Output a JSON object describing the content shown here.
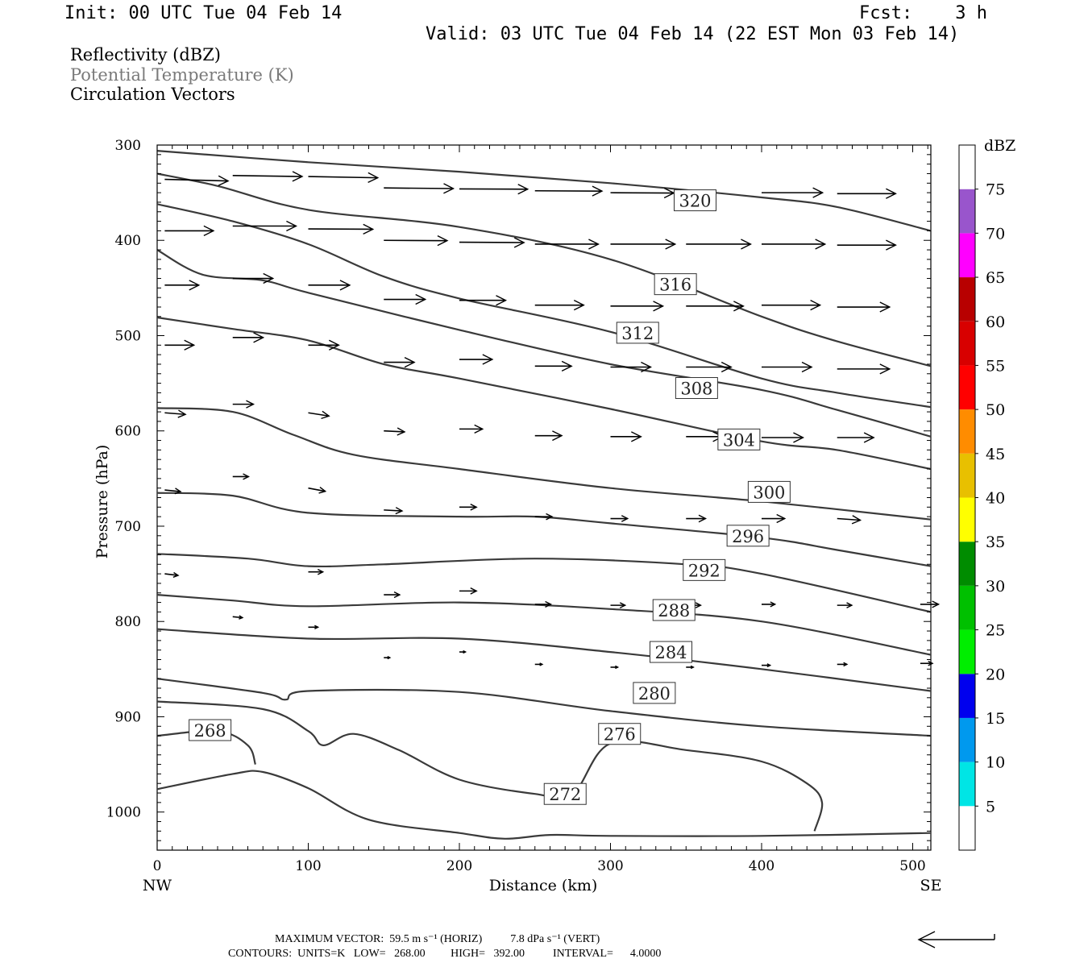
{
  "header": {
    "init": "Init: 00 UTC Tue 04 Feb 14",
    "fcst": "Fcst:    3 h",
    "valid": "Valid: 03 UTC Tue 04 Feb 14 (22 EST Mon 03 Feb 14)",
    "field1": "Reflectivity (dBZ)",
    "field2": "Potential Temperature (K)",
    "field3": "Circulation Vectors"
  },
  "footer": {
    "line1": "MAXIMUM VECTOR:  59.5 m s⁻¹ (HORIZ)          7.8 dPa s⁻¹ (VERT)",
    "line2": "CONTOURS:  UNITS=K   LOW=   268.00         HIGH=   392.00          INTERVAL=      4.0000"
  },
  "colors": {
    "contour": "#3a3a3a",
    "frame": "#000000",
    "theta_legend": "#7a7a7a"
  },
  "chart_data": {
    "type": "cross-section",
    "title": "",
    "xlabel": "Distance (km)",
    "ylabel": "Pressure (hPa)",
    "xlim": [
      0,
      512
    ],
    "ylim": [
      1040,
      300
    ],
    "x_ticks": [
      0,
      100,
      200,
      300,
      400,
      500
    ],
    "y_ticks": [
      300,
      400,
      500,
      600,
      700,
      800,
      900,
      1000
    ],
    "x_end_labels": {
      "left": "NW",
      "right": "SE"
    },
    "colorbar": {
      "title": "dBZ",
      "levels": [
        5,
        10,
        15,
        20,
        25,
        30,
        35,
        40,
        45,
        50,
        55,
        60,
        65,
        70,
        75
      ],
      "colors": [
        "#ffffff",
        "#00e5e5",
        "#0099ee",
        "#0000ee",
        "#00ee00",
        "#00c000",
        "#008c00",
        "#ffff00",
        "#e8c000",
        "#ff8c00",
        "#ff0000",
        "#d80000",
        "#b80000",
        "#ff00ff",
        "#9955cc",
        "#ffffff"
      ]
    },
    "theta_contours": [
      {
        "level": 320,
        "points": [
          [
            0,
            306
          ],
          [
            100,
            318
          ],
          [
            200,
            328
          ],
          [
            300,
            340
          ],
          [
            400,
            355
          ],
          [
            450,
            365
          ],
          [
            512,
            390
          ]
        ],
        "label": "320",
        "label_at": [
          356,
          358
        ]
      },
      {
        "level": 316,
        "points": [
          [
            0,
            330
          ],
          [
            40,
            343
          ],
          [
            100,
            368
          ],
          [
            200,
            386
          ],
          [
            300,
            420
          ],
          [
            400,
            480
          ],
          [
            450,
            506
          ],
          [
            512,
            532
          ]
        ],
        "label": "316",
        "label_at": [
          343,
          446
        ]
      },
      {
        "level": 312,
        "points": [
          [
            0,
            362
          ],
          [
            50,
            380
          ],
          [
            100,
            404
          ],
          [
            150,
            438
          ],
          [
            200,
            461
          ],
          [
            300,
            496
          ],
          [
            400,
            545
          ],
          [
            450,
            560
          ],
          [
            512,
            575
          ]
        ],
        "label": "312",
        "label_at": [
          318,
          497
        ]
      },
      {
        "level": 308,
        "points": [
          [
            0,
            410
          ],
          [
            30,
            436
          ],
          [
            70,
            442
          ],
          [
            100,
            455
          ],
          [
            200,
            494
          ],
          [
            300,
            530
          ],
          [
            400,
            557
          ],
          [
            450,
            578
          ],
          [
            512,
            606
          ]
        ],
        "label": "308",
        "label_at": [
          357,
          555
        ]
      },
      {
        "level": 304,
        "points": [
          [
            0,
            481
          ],
          [
            50,
            493
          ],
          [
            100,
            505
          ],
          [
            150,
            530
          ],
          [
            200,
            545
          ],
          [
            300,
            577
          ],
          [
            400,
            611
          ],
          [
            450,
            620
          ],
          [
            512,
            640
          ]
        ],
        "label": "304",
        "label_at": [
          385,
          609
        ]
      },
      {
        "level": 300,
        "points": [
          [
            0,
            576
          ],
          [
            50,
            580
          ],
          [
            90,
            604
          ],
          [
            130,
            625
          ],
          [
            200,
            640
          ],
          [
            300,
            660
          ],
          [
            400,
            674
          ],
          [
            512,
            693
          ]
        ],
        "label": "300",
        "label_at": [
          405,
          664
        ]
      },
      {
        "level": 296,
        "points": [
          [
            0,
            665
          ],
          [
            50,
            668
          ],
          [
            100,
            686
          ],
          [
            200,
            690
          ],
          [
            250,
            690
          ],
          [
            300,
            697
          ],
          [
            400,
            712
          ],
          [
            450,
            725
          ],
          [
            512,
            742
          ]
        ],
        "label": "296",
        "label_at": [
          391,
          710
        ]
      },
      {
        "level": 292,
        "points": [
          [
            0,
            729
          ],
          [
            60,
            734
          ],
          [
            100,
            742
          ],
          [
            150,
            740
          ],
          [
            250,
            734
          ],
          [
            350,
            740
          ],
          [
            400,
            750
          ],
          [
            512,
            790
          ]
        ],
        "label": "292",
        "label_at": [
          362,
          746
        ]
      },
      {
        "level": 288,
        "points": [
          [
            0,
            772
          ],
          [
            50,
            778
          ],
          [
            100,
            784
          ],
          [
            200,
            780
          ],
          [
            300,
            787
          ],
          [
            400,
            800
          ],
          [
            512,
            835
          ]
        ],
        "label": "288",
        "label_at": [
          342,
          788
        ]
      },
      {
        "level": 284,
        "points": [
          [
            0,
            808
          ],
          [
            100,
            818
          ],
          [
            200,
            818
          ],
          [
            300,
            832
          ],
          [
            400,
            850
          ],
          [
            512,
            873
          ]
        ],
        "label": "284",
        "label_at": [
          340,
          832
        ]
      },
      {
        "level": 280,
        "points": [
          [
            0,
            860
          ],
          [
            70,
            875
          ],
          [
            85,
            882
          ],
          [
            100,
            873
          ],
          [
            200,
            874
          ],
          [
            300,
            894
          ],
          [
            400,
            910
          ],
          [
            512,
            920
          ]
        ],
        "label": "280",
        "label_at": [
          329,
          875
        ]
      },
      {
        "level": 276,
        "points": [
          [
            0,
            884
          ],
          [
            70,
            892
          ],
          [
            100,
            915
          ],
          [
            110,
            930
          ],
          [
            130,
            918
          ],
          [
            160,
            935
          ],
          [
            200,
            966
          ],
          [
            250,
            981
          ],
          [
            275,
            981
          ],
          [
            300,
            928
          ],
          [
            350,
            935
          ],
          [
            400,
            947
          ],
          [
            430,
            970
          ],
          [
            440,
            990
          ],
          [
            435,
            1020
          ]
        ],
        "label": "276",
        "label_at": [
          306,
          918
        ]
      },
      {
        "level": 272,
        "points": [
          [
            0,
            976
          ],
          [
            50,
            960
          ],
          [
            70,
            958
          ],
          [
            100,
            975
          ],
          [
            140,
            1008
          ],
          [
            200,
            1022
          ],
          [
            230,
            1028
          ],
          [
            260,
            1024
          ],
          [
            300,
            1025
          ],
          [
            400,
            1025
          ],
          [
            512,
            1022
          ]
        ],
        "label": "272",
        "label_at": [
          270,
          981
        ]
      },
      {
        "level": 268,
        "points": [
          [
            0,
            920
          ],
          [
            40,
            915
          ],
          [
            60,
            930
          ],
          [
            65,
            950
          ]
        ],
        "label": "268",
        "label_at": [
          35,
          914
        ]
      }
    ],
    "vectors": {
      "note": "u in m/s (horizontal), w in dPa/s (vertical)",
      "items": [
        {
          "x": 5,
          "p": 336,
          "u": 52,
          "w": 0.5
        },
        {
          "x": 50,
          "p": 332,
          "u": 57,
          "w": 0.3
        },
        {
          "x": 100,
          "p": 333,
          "u": 57,
          "w": 0.4
        },
        {
          "x": 150,
          "p": 345,
          "u": 57,
          "w": 0.2
        },
        {
          "x": 200,
          "p": 346,
          "u": 56,
          "w": 0.1
        },
        {
          "x": 250,
          "p": 348,
          "u": 55,
          "w": 0.1
        },
        {
          "x": 300,
          "p": 350,
          "u": 52,
          "w": 0.1
        },
        {
          "x": 400,
          "p": 350,
          "u": 50,
          "w": 0.0
        },
        {
          "x": 450,
          "p": 351,
          "u": 48,
          "w": 0.0
        },
        {
          "x": 5,
          "p": 390,
          "u": 40,
          "w": 0.0
        },
        {
          "x": 50,
          "p": 385,
          "u": 52,
          "w": 0.0
        },
        {
          "x": 100,
          "p": 388,
          "u": 53,
          "w": 0.1
        },
        {
          "x": 150,
          "p": 400,
          "u": 52,
          "w": 0.1
        },
        {
          "x": 200,
          "p": 402,
          "u": 53,
          "w": 0.1
        },
        {
          "x": 250,
          "p": 404,
          "u": 52,
          "w": 0.0
        },
        {
          "x": 300,
          "p": 404,
          "u": 53,
          "w": 0.0
        },
        {
          "x": 350,
          "p": 404,
          "u": 53,
          "w": 0.0
        },
        {
          "x": 400,
          "p": 404,
          "u": 52,
          "w": 0.0
        },
        {
          "x": 450,
          "p": 405,
          "u": 48,
          "w": 0.0
        },
        {
          "x": 5,
          "p": 447,
          "u": 28,
          "w": 0.0
        },
        {
          "x": 50,
          "p": 440,
          "u": 33,
          "w": 0.0
        },
        {
          "x": 100,
          "p": 447,
          "u": 34,
          "w": 0.0
        },
        {
          "x": 150,
          "p": 462,
          "u": 34,
          "w": 0.0
        },
        {
          "x": 200,
          "p": 463,
          "u": 38,
          "w": 0.0
        },
        {
          "x": 250,
          "p": 468,
          "u": 40,
          "w": 0.0
        },
        {
          "x": 300,
          "p": 469,
          "u": 43,
          "w": 0.0
        },
        {
          "x": 350,
          "p": 469,
          "u": 47,
          "w": 0.0
        },
        {
          "x": 400,
          "p": 468,
          "u": 48,
          "w": 0.0
        },
        {
          "x": 450,
          "p": 470,
          "u": 43,
          "w": 0.0
        },
        {
          "x": 5,
          "p": 510,
          "u": 24,
          "w": 0.0
        },
        {
          "x": 50,
          "p": 502,
          "u": 25,
          "w": 0.0
        },
        {
          "x": 100,
          "p": 510,
          "u": 25,
          "w": 0.0
        },
        {
          "x": 150,
          "p": 528,
          "u": 25,
          "w": 0.0
        },
        {
          "x": 200,
          "p": 525,
          "u": 27,
          "w": 0.0
        },
        {
          "x": 250,
          "p": 532,
          "u": 30,
          "w": 0.0
        },
        {
          "x": 300,
          "p": 533,
          "u": 33,
          "w": 0.0
        },
        {
          "x": 350,
          "p": 533,
          "u": 37,
          "w": 0.0
        },
        {
          "x": 400,
          "p": 533,
          "u": 41,
          "w": 0.0
        },
        {
          "x": 450,
          "p": 535,
          "u": 43,
          "w": 0.0
        },
        {
          "x": 5,
          "p": 581,
          "u": 17,
          "w": 0.5
        },
        {
          "x": 50,
          "p": 572,
          "u": 17,
          "w": 0.0
        },
        {
          "x": 100,
          "p": 581,
          "u": 17,
          "w": 1.0
        },
        {
          "x": 150,
          "p": 600,
          "u": 17,
          "w": 0.3
        },
        {
          "x": 200,
          "p": 598,
          "u": 19,
          "w": 0.0
        },
        {
          "x": 250,
          "p": 605,
          "u": 22,
          "w": 0.0
        },
        {
          "x": 300,
          "p": 606,
          "u": 25,
          "w": 0.0
        },
        {
          "x": 350,
          "p": 606,
          "u": 30,
          "w": 0.0
        },
        {
          "x": 400,
          "p": 607,
          "u": 34,
          "w": 0.0
        },
        {
          "x": 450,
          "p": 607,
          "u": 30,
          "w": 0.0
        },
        {
          "x": 5,
          "p": 662,
          "u": 13,
          "w": 0.5
        },
        {
          "x": 50,
          "p": 648,
          "u": 13,
          "w": 0.0
        },
        {
          "x": 100,
          "p": 660,
          "u": 14,
          "w": 1.0
        },
        {
          "x": 150,
          "p": 683,
          "u": 15,
          "w": 0.3
        },
        {
          "x": 200,
          "p": 680,
          "u": 14,
          "w": 0.0
        },
        {
          "x": 250,
          "p": 690,
          "u": 14,
          "w": 0.0
        },
        {
          "x": 300,
          "p": 692,
          "u": 14,
          "w": 0.0
        },
        {
          "x": 350,
          "p": 692,
          "u": 16,
          "w": 0.0
        },
        {
          "x": 400,
          "p": 692,
          "u": 19,
          "w": 0.0
        },
        {
          "x": 450,
          "p": 692,
          "u": 19,
          "w": 0.5
        },
        {
          "x": 5,
          "p": 750,
          "u": 11,
          "w": 0.5
        },
        {
          "x": 100,
          "p": 748,
          "u": 12,
          "w": 0.0
        },
        {
          "x": 150,
          "p": 772,
          "u": 13,
          "w": 0.0
        },
        {
          "x": 200,
          "p": 768,
          "u": 14,
          "w": 0.0
        },
        {
          "x": 250,
          "p": 782,
          "u": 13,
          "w": 0.0
        },
        {
          "x": 300,
          "p": 783,
          "u": 12,
          "w": 0.0
        },
        {
          "x": 350,
          "p": 783,
          "u": 12,
          "w": 0.0
        },
        {
          "x": 400,
          "p": 782,
          "u": 11,
          "w": 0.0
        },
        {
          "x": 450,
          "p": 783,
          "u": 12,
          "w": 0.0
        },
        {
          "x": 505,
          "p": 782,
          "u": 15,
          "w": 0.0
        },
        {
          "x": 50,
          "p": 795,
          "u": 8,
          "w": 0.3
        },
        {
          "x": 100,
          "p": 806,
          "u": 8,
          "w": 0.0
        },
        {
          "x": 150,
          "p": 838,
          "u": 5,
          "w": 0.0
        },
        {
          "x": 200,
          "p": 832,
          "u": 5,
          "w": 0.0
        },
        {
          "x": 250,
          "p": 845,
          "u": 6,
          "w": 0.0
        },
        {
          "x": 300,
          "p": 848,
          "u": 6,
          "w": 0.0
        },
        {
          "x": 350,
          "p": 848,
          "u": 6,
          "w": 0.0
        },
        {
          "x": 400,
          "p": 846,
          "u": 7,
          "w": 0.0
        },
        {
          "x": 450,
          "p": 845,
          "u": 8,
          "w": 0.0
        },
        {
          "x": 505,
          "p": 844,
          "u": 10,
          "w": 0.0
        }
      ]
    },
    "colorbar_title": "dBZ"
  }
}
